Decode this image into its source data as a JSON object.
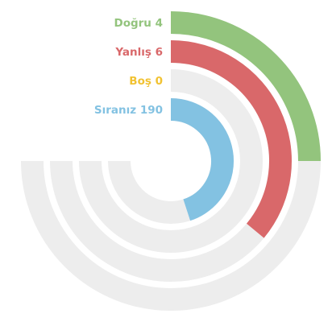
{
  "chart_data": {
    "type": "radial-bar",
    "colors": {
      "track": "#ededed",
      "background": "#ffffff"
    },
    "series": [
      {
        "key": "dogru",
        "label": "Doğru",
        "value": 4,
        "fraction": 0.25,
        "color": "#93c47d"
      },
      {
        "key": "yanlis",
        "label": "Yanlış",
        "value": 6,
        "fraction": 0.36,
        "color": "#d9686a"
      },
      {
        "key": "bos",
        "label": "Boş",
        "value": 0,
        "fraction": 0.0,
        "color": "#f1c232"
      },
      {
        "key": "siraniz",
        "label": "Sıranız",
        "value": 190,
        "fraction": 0.45,
        "color": "#83c2e2"
      }
    ]
  }
}
